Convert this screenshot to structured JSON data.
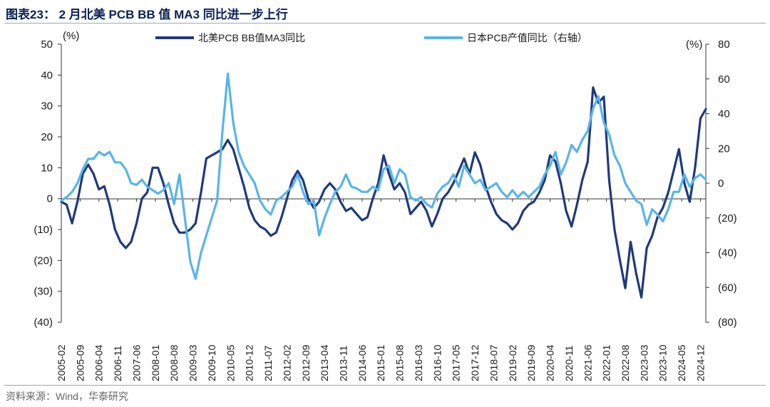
{
  "header": {
    "title": "图表23： 2 月北美 PCB BB 值 MA3 同比进一步上行"
  },
  "footer": {
    "source": "资料来源：Wind，华泰研究"
  },
  "colors": {
    "dark": "#1f3a7a",
    "light": "#5ab4ea",
    "rule": "#9aa6bf"
  },
  "chart_data": {
    "type": "line",
    "left_axis": {
      "unit": "(%)",
      "ylim": [
        -40,
        50
      ],
      "ticks": [
        50,
        40,
        30,
        20,
        10,
        0,
        -10,
        -20,
        -30,
        -40
      ],
      "tick_labels": [
        "50",
        "40",
        "30",
        "20",
        "10",
        "0",
        "(10)",
        "(20)",
        "(30)",
        "(40)"
      ]
    },
    "right_axis": {
      "unit": "(%)",
      "ylim": [
        -80,
        80
      ],
      "ticks": [
        80,
        60,
        40,
        20,
        0,
        -20,
        -40,
        -60,
        -80
      ],
      "tick_labels": [
        "80",
        "60",
        "40",
        "20",
        "0",
        "(20)",
        "(40)",
        "(60)",
        "(80)"
      ]
    },
    "x_tick_labels": [
      "2005-02",
      "2005-09",
      "2006-04",
      "2006-11",
      "2007-06",
      "2008-01",
      "2008-08",
      "2009-03",
      "2009-10",
      "2010-05",
      "2010-12",
      "2011-07",
      "2012-02",
      "2012-09",
      "2013-04",
      "2013-11",
      "2014-06",
      "2015-01",
      "2015-08",
      "2016-03",
      "2016-10",
      "2017-05",
      "2017-12",
      "2018-07",
      "2019-02",
      "2019-09",
      "2020-04",
      "2020-11",
      "2021-06",
      "2022-01",
      "2022-08",
      "2023-03",
      "2023-10",
      "2024-05",
      "2024-12"
    ],
    "x_range": [
      "2005-02",
      "2025-02"
    ],
    "legend_position": "top",
    "series": [
      {
        "name": "北美PCB BB值MA3同比",
        "axis": "left",
        "color": "#1f3a7a",
        "points": [
          [
            "2005-02",
            -1
          ],
          [
            "2005-04",
            -2
          ],
          [
            "2005-06",
            -8
          ],
          [
            "2005-08",
            -1
          ],
          [
            "2005-10",
            8
          ],
          [
            "2005-12",
            11
          ],
          [
            "2006-02",
            8
          ],
          [
            "2006-04",
            3
          ],
          [
            "2006-06",
            4
          ],
          [
            "2006-08",
            -2
          ],
          [
            "2006-10",
            -10
          ],
          [
            "2006-12",
            -14
          ],
          [
            "2007-02",
            -16
          ],
          [
            "2007-04",
            -14
          ],
          [
            "2007-06",
            -8
          ],
          [
            "2007-08",
            0
          ],
          [
            "2007-10",
            2
          ],
          [
            "2007-12",
            10
          ],
          [
            "2008-02",
            10
          ],
          [
            "2008-04",
            5
          ],
          [
            "2008-06",
            -2
          ],
          [
            "2008-08",
            -8
          ],
          [
            "2008-10",
            -11
          ],
          [
            "2008-12",
            -11
          ],
          [
            "2009-02",
            -10
          ],
          [
            "2009-04",
            -8
          ],
          [
            "2009-06",
            2
          ],
          [
            "2009-08",
            13
          ],
          [
            "2009-10",
            14
          ],
          [
            "2009-12",
            15
          ],
          [
            "2010-02",
            16
          ],
          [
            "2010-04",
            19
          ],
          [
            "2010-06",
            16
          ],
          [
            "2010-08",
            10
          ],
          [
            "2010-10",
            4
          ],
          [
            "2010-12",
            -3
          ],
          [
            "2011-02",
            -7
          ],
          [
            "2011-04",
            -9
          ],
          [
            "2011-06",
            -10
          ],
          [
            "2011-08",
            -12
          ],
          [
            "2011-10",
            -11
          ],
          [
            "2011-12",
            -6
          ],
          [
            "2012-02",
            0
          ],
          [
            "2012-04",
            6
          ],
          [
            "2012-06",
            9
          ],
          [
            "2012-08",
            6
          ],
          [
            "2012-10",
            0
          ],
          [
            "2012-12",
            -3
          ],
          [
            "2013-02",
            -1
          ],
          [
            "2013-04",
            3
          ],
          [
            "2013-06",
            5
          ],
          [
            "2013-08",
            3
          ],
          [
            "2013-10",
            -1
          ],
          [
            "2013-12",
            -4
          ],
          [
            "2014-02",
            -3
          ],
          [
            "2014-04",
            -5
          ],
          [
            "2014-06",
            -7
          ],
          [
            "2014-08",
            -6
          ],
          [
            "2014-10",
            0
          ],
          [
            "2014-12",
            5
          ],
          [
            "2015-02",
            14
          ],
          [
            "2015-04",
            8
          ],
          [
            "2015-06",
            3
          ],
          [
            "2015-08",
            5
          ],
          [
            "2015-10",
            2
          ],
          [
            "2015-12",
            -5
          ],
          [
            "2016-02",
            -3
          ],
          [
            "2016-04",
            -1
          ],
          [
            "2016-06",
            -4
          ],
          [
            "2016-08",
            -9
          ],
          [
            "2016-10",
            -5
          ],
          [
            "2016-12",
            0
          ],
          [
            "2017-02",
            2
          ],
          [
            "2017-04",
            5
          ],
          [
            "2017-06",
            9
          ],
          [
            "2017-08",
            13
          ],
          [
            "2017-10",
            8
          ],
          [
            "2017-12",
            15
          ],
          [
            "2018-02",
            11
          ],
          [
            "2018-04",
            4
          ],
          [
            "2018-06",
            -1
          ],
          [
            "2018-08",
            -5
          ],
          [
            "2018-10",
            -7
          ],
          [
            "2018-12",
            -8
          ],
          [
            "2019-02",
            -10
          ],
          [
            "2019-04",
            -8
          ],
          [
            "2019-06",
            -4
          ],
          [
            "2019-08",
            -2
          ],
          [
            "2019-10",
            -1
          ],
          [
            "2019-12",
            2
          ],
          [
            "2020-02",
            6
          ],
          [
            "2020-04",
            14
          ],
          [
            "2020-06",
            12
          ],
          [
            "2020-08",
            5
          ],
          [
            "2020-10",
            -4
          ],
          [
            "2020-12",
            -9
          ],
          [
            "2021-02",
            -2
          ],
          [
            "2021-04",
            6
          ],
          [
            "2021-06",
            12
          ],
          [
            "2021-08",
            36
          ],
          [
            "2021-10",
            31
          ],
          [
            "2021-12",
            33
          ],
          [
            "2022-02",
            6
          ],
          [
            "2022-04",
            -10
          ],
          [
            "2022-06",
            -20
          ],
          [
            "2022-08",
            -29
          ],
          [
            "2022-10",
            -14
          ],
          [
            "2022-12",
            -24
          ],
          [
            "2023-02",
            -32
          ],
          [
            "2023-04",
            -16
          ],
          [
            "2023-06",
            -12
          ],
          [
            "2023-08",
            -6
          ],
          [
            "2023-10",
            -3
          ],
          [
            "2023-12",
            2
          ],
          [
            "2024-02",
            9
          ],
          [
            "2024-04",
            16
          ],
          [
            "2024-06",
            5
          ],
          [
            "2024-08",
            -1
          ],
          [
            "2024-10",
            10
          ],
          [
            "2024-12",
            26
          ],
          [
            "2025-02",
            29
          ]
        ]
      },
      {
        "name": "日本PCB产值同比（右轴）",
        "axis": "right",
        "color": "#5ab4ea",
        "points": [
          [
            "2005-02",
            -10
          ],
          [
            "2005-04",
            -8
          ],
          [
            "2005-06",
            -5
          ],
          [
            "2005-08",
            0
          ],
          [
            "2005-10",
            8
          ],
          [
            "2005-12",
            14
          ],
          [
            "2006-02",
            14
          ],
          [
            "2006-04",
            18
          ],
          [
            "2006-06",
            16
          ],
          [
            "2006-08",
            18
          ],
          [
            "2006-10",
            12
          ],
          [
            "2006-12",
            12
          ],
          [
            "2007-02",
            8
          ],
          [
            "2007-04",
            0
          ],
          [
            "2007-06",
            -1
          ],
          [
            "2007-08",
            2
          ],
          [
            "2007-10",
            -2
          ],
          [
            "2007-12",
            -4
          ],
          [
            "2008-02",
            -6
          ],
          [
            "2008-04",
            -4
          ],
          [
            "2008-06",
            0
          ],
          [
            "2008-08",
            -12
          ],
          [
            "2008-10",
            5
          ],
          [
            "2008-12",
            -20
          ],
          [
            "2009-02",
            -45
          ],
          [
            "2009-04",
            -55
          ],
          [
            "2009-06",
            -40
          ],
          [
            "2009-08",
            -30
          ],
          [
            "2009-10",
            -20
          ],
          [
            "2009-12",
            -10
          ],
          [
            "2010-02",
            30
          ],
          [
            "2010-04",
            63
          ],
          [
            "2010-06",
            35
          ],
          [
            "2010-08",
            18
          ],
          [
            "2010-10",
            10
          ],
          [
            "2010-12",
            5
          ],
          [
            "2011-02",
            0
          ],
          [
            "2011-04",
            -10
          ],
          [
            "2011-06",
            -15
          ],
          [
            "2011-08",
            -18
          ],
          [
            "2011-10",
            -10
          ],
          [
            "2011-12",
            -8
          ],
          [
            "2012-02",
            -5
          ],
          [
            "2012-04",
            -2
          ],
          [
            "2012-06",
            5
          ],
          [
            "2012-08",
            -5
          ],
          [
            "2012-10",
            -12
          ],
          [
            "2012-12",
            -10
          ],
          [
            "2013-02",
            -30
          ],
          [
            "2013-04",
            -20
          ],
          [
            "2013-06",
            -12
          ],
          [
            "2013-08",
            -5
          ],
          [
            "2013-10",
            -2
          ],
          [
            "2013-12",
            5
          ],
          [
            "2014-02",
            -2
          ],
          [
            "2014-04",
            -3
          ],
          [
            "2014-06",
            -5
          ],
          [
            "2014-08",
            -5
          ],
          [
            "2014-10",
            -2
          ],
          [
            "2014-12",
            -4
          ],
          [
            "2015-02",
            8
          ],
          [
            "2015-04",
            10
          ],
          [
            "2015-06",
            0
          ],
          [
            "2015-08",
            8
          ],
          [
            "2015-10",
            5
          ],
          [
            "2015-12",
            -8
          ],
          [
            "2016-02",
            -10
          ],
          [
            "2016-04",
            -8
          ],
          [
            "2016-06",
            -12
          ],
          [
            "2016-08",
            -14
          ],
          [
            "2016-10",
            -6
          ],
          [
            "2016-12",
            -2
          ],
          [
            "2017-02",
            0
          ],
          [
            "2017-04",
            5
          ],
          [
            "2017-06",
            -2
          ],
          [
            "2017-08",
            10
          ],
          [
            "2017-10",
            5
          ],
          [
            "2017-12",
            0
          ],
          [
            "2018-02",
            2
          ],
          [
            "2018-04",
            -4
          ],
          [
            "2018-06",
            -2
          ],
          [
            "2018-08",
            0
          ],
          [
            "2018-10",
            -5
          ],
          [
            "2018-12",
            -8
          ],
          [
            "2019-02",
            -4
          ],
          [
            "2019-04",
            -8
          ],
          [
            "2019-06",
            -5
          ],
          [
            "2019-08",
            -8
          ],
          [
            "2019-10",
            -5
          ],
          [
            "2019-12",
            -2
          ],
          [
            "2020-02",
            5
          ],
          [
            "2020-04",
            10
          ],
          [
            "2020-06",
            18
          ],
          [
            "2020-08",
            5
          ],
          [
            "2020-10",
            12
          ],
          [
            "2020-12",
            22
          ],
          [
            "2021-02",
            18
          ],
          [
            "2021-04",
            25
          ],
          [
            "2021-06",
            30
          ],
          [
            "2021-08",
            43
          ],
          [
            "2021-10",
            50
          ],
          [
            "2021-12",
            35
          ],
          [
            "2022-02",
            28
          ],
          [
            "2022-04",
            16
          ],
          [
            "2022-06",
            10
          ],
          [
            "2022-08",
            0
          ],
          [
            "2022-10",
            -5
          ],
          [
            "2022-12",
            -10
          ],
          [
            "2023-02",
            -12
          ],
          [
            "2023-04",
            -24
          ],
          [
            "2023-06",
            -15
          ],
          [
            "2023-08",
            -18
          ],
          [
            "2023-10",
            -22
          ],
          [
            "2023-12",
            -15
          ],
          [
            "2024-02",
            -5
          ],
          [
            "2024-04",
            -5
          ],
          [
            "2024-06",
            5
          ],
          [
            "2024-08",
            -2
          ],
          [
            "2024-10",
            3
          ],
          [
            "2024-12",
            5
          ],
          [
            "2025-02",
            2
          ]
        ]
      }
    ]
  }
}
